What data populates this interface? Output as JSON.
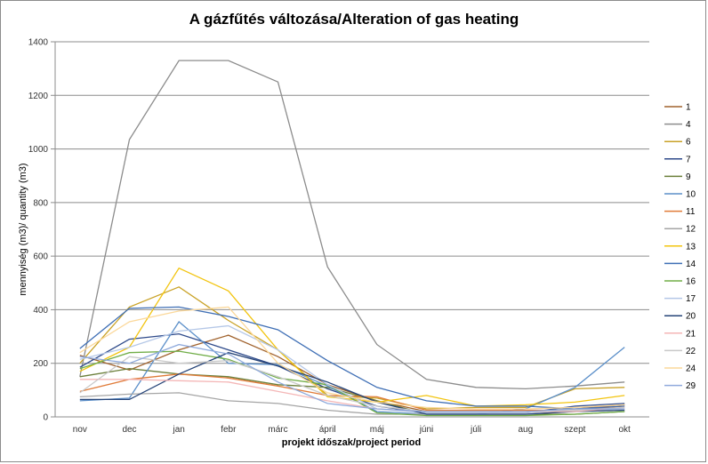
{
  "chart_data": {
    "type": "line",
    "title": "A gázfűtés változása/Alteration of gas heating",
    "xlabel": "projekt időszak/project period",
    "ylabel": "mennyiség (m3)/ quantity (m3)",
    "ylim": [
      0,
      1400
    ],
    "yticks": [
      "0",
      "200",
      "400",
      "600",
      "800",
      "1000",
      "1200",
      "1400"
    ],
    "grid": true,
    "legend_position": "right",
    "categories": [
      "nov",
      "dec",
      "jan",
      "febr",
      "márc",
      "ápril",
      "máj",
      "júni",
      "júli",
      "aug",
      "szept",
      "okt"
    ],
    "series": [
      {
        "name": "1",
        "color": "#a0622d",
        "values": [
          230,
          175,
          250,
          305,
          225,
          120,
          60,
          20,
          20,
          20,
          30,
          45
        ]
      },
      {
        "name": "4",
        "color": "#8c8c8c",
        "values": [
          150,
          1035,
          1330,
          1330,
          1250,
          560,
          270,
          140,
          110,
          105,
          115,
          130
        ]
      },
      {
        "name": "6",
        "color": "#c9a227",
        "values": [
          200,
          410,
          485,
          360,
          250,
          80,
          70,
          30,
          35,
          35,
          105,
          110
        ]
      },
      {
        "name": "7",
        "color": "#2e4a8a",
        "values": [
          185,
          290,
          310,
          250,
          190,
          105,
          40,
          15,
          15,
          15,
          40,
          50
        ]
      },
      {
        "name": "9",
        "color": "#6b7f3a",
        "values": [
          150,
          180,
          160,
          150,
          120,
          110,
          60,
          10,
          10,
          10,
          10,
          20
        ]
      },
      {
        "name": "10",
        "color": "#5b8fc9",
        "values": [
          60,
          70,
          355,
          200,
          195,
          115,
          20,
          10,
          10,
          30,
          110,
          260
        ]
      },
      {
        "name": "11",
        "color": "#e07b39",
        "values": [
          95,
          140,
          160,
          145,
          115,
          80,
          75,
          25,
          25,
          25,
          25,
          40
        ]
      },
      {
        "name": "12",
        "color": "#a5a5a5",
        "values": [
          75,
          85,
          90,
          60,
          50,
          25,
          10,
          10,
          10,
          10,
          20,
          30
        ]
      },
      {
        "name": "13",
        "color": "#f2c40f",
        "values": [
          170,
          260,
          555,
          470,
          250,
          75,
          55,
          80,
          40,
          45,
          55,
          80
        ]
      },
      {
        "name": "14",
        "color": "#3f6fb5",
        "values": [
          255,
          405,
          410,
          375,
          325,
          210,
          110,
          60,
          40,
          40,
          30,
          40
        ]
      },
      {
        "name": "16",
        "color": "#70ad47",
        "values": [
          180,
          240,
          245,
          215,
          145,
          120,
          15,
          5,
          5,
          5,
          10,
          20
        ]
      },
      {
        "name": "17",
        "color": "#b4c7e7",
        "values": [
          215,
          260,
          320,
          340,
          250,
          120,
          30,
          15,
          15,
          15,
          25,
          30
        ]
      },
      {
        "name": "20",
        "color": "#264478",
        "values": [
          65,
          65,
          160,
          240,
          190,
          130,
          55,
          10,
          10,
          10,
          20,
          25
        ]
      },
      {
        "name": "21",
        "color": "#f4b6b6",
        "values": [
          140,
          140,
          135,
          130,
          95,
          60,
          30,
          20,
          20,
          20,
          20,
          35
        ]
      },
      {
        "name": "22",
        "color": "#c9c9c9",
        "values": [
          90,
          225,
          200,
          210,
          150,
          80,
          40,
          20,
          20,
          20,
          25,
          35
        ]
      },
      {
        "name": "24",
        "color": "#fbd89a",
        "values": [
          240,
          355,
          395,
          410,
          200,
          90,
          55,
          35,
          30,
          30,
          35,
          45
        ]
      },
      {
        "name": "29",
        "color": "#8faadc",
        "values": [
          225,
          200,
          270,
          235,
          130,
          50,
          30,
          20,
          20,
          20,
          30,
          30
        ]
      }
    ]
  }
}
